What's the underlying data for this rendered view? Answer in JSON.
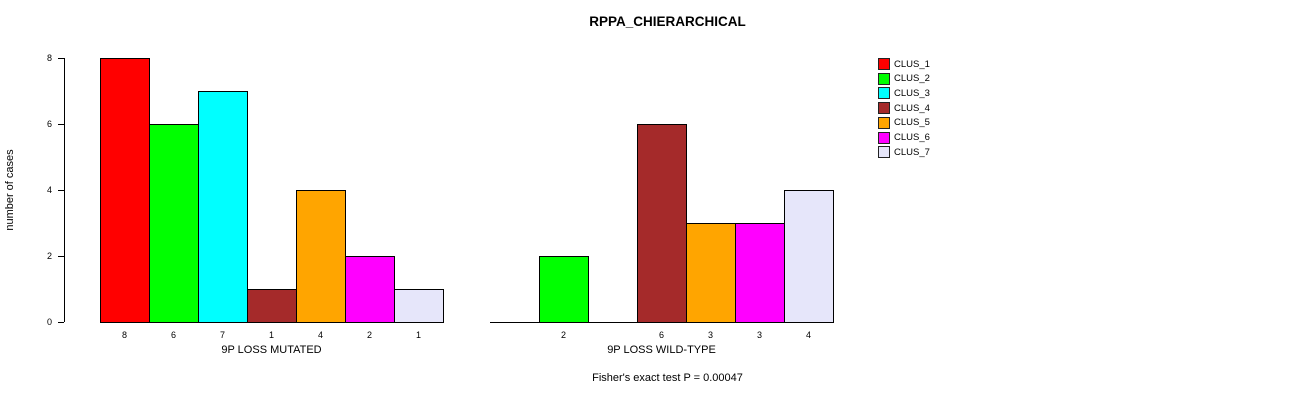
{
  "title": "RPPA_CHIERARCHICAL",
  "footer": "Fisher's exact test P = 0.00047",
  "chart_data": {
    "type": "bar",
    "title": "RPPA_CHIERARCHICAL",
    "xlabel": "",
    "ylabel": "number of cases",
    "ylim": [
      0,
      8
    ],
    "yticks": [
      0,
      2,
      4,
      6,
      8
    ],
    "grid": false,
    "legend_position": "right",
    "series_names": [
      "CLUS_1",
      "CLUS_2",
      "CLUS_3",
      "CLUS_4",
      "CLUS_5",
      "CLUS_6",
      "CLUS_7"
    ],
    "colors": [
      "#FF0000",
      "#00FF00",
      "#00FFFF",
      "#A52A2A",
      "#FFA500",
      "#FF00FF",
      "#E6E6FA"
    ],
    "groups": [
      {
        "label": "9P LOSS MUTATED",
        "values": [
          8,
          6,
          7,
          1,
          4,
          2,
          1
        ],
        "bar_labels": [
          "8",
          "6",
          "7",
          "1",
          "4",
          "2",
          "1"
        ]
      },
      {
        "label": "9P LOSS WILD-TYPE",
        "values": [
          0,
          2,
          0,
          6,
          3,
          3,
          4
        ],
        "bar_labels": [
          "",
          "2",
          "",
          "6",
          "3",
          "3",
          "4"
        ]
      }
    ],
    "annotation": "Fisher's exact test P = 0.00047"
  }
}
